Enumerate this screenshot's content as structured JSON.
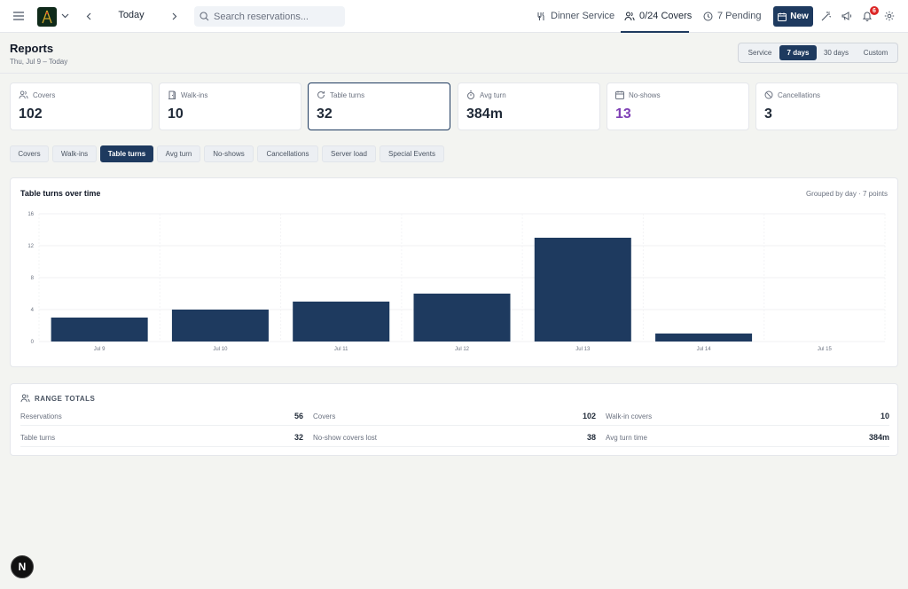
{
  "topbar": {
    "date_label": "Today",
    "search_placeholder": "Search reservations...",
    "service_label": "Dinner Service",
    "covers_label": "0/24 Covers",
    "pending_label": "7 Pending",
    "new_label": "New",
    "notification_count": "6"
  },
  "header": {
    "title": "Reports",
    "subtitle": "Thu, Jul 9 – Today",
    "ranges": [
      "Service",
      "7 days",
      "30 days",
      "Custom"
    ],
    "active_range": "7 days"
  },
  "cards": [
    {
      "label": "Covers",
      "value": "102",
      "icon": "users-icon"
    },
    {
      "label": "Walk-ins",
      "value": "10",
      "icon": "door-icon"
    },
    {
      "label": "Table turns",
      "value": "32",
      "icon": "refresh-icon"
    },
    {
      "label": "Avg turn",
      "value": "384m",
      "icon": "timer-icon"
    },
    {
      "label": "No-shows",
      "value": "13",
      "icon": "calendar-x-icon",
      "color": "#7e3fb5"
    },
    {
      "label": "Cancellations",
      "value": "3",
      "icon": "ban-icon"
    }
  ],
  "metric_tabs": [
    "Covers",
    "Walk-ins",
    "Table turns",
    "Avg turn",
    "No-shows",
    "Cancellations",
    "Server load",
    "Special Events"
  ],
  "active_metric": "Table turns",
  "chart": {
    "title": "Table turns over time",
    "note": "Grouped by day · 7 points"
  },
  "chart_data": {
    "type": "bar",
    "categories": [
      "Jul 9",
      "Jul 10",
      "Jul 11",
      "Jul 12",
      "Jul 13",
      "Jul 14",
      "Jul 15"
    ],
    "values": [
      3,
      4,
      5,
      6,
      13,
      1,
      0
    ],
    "yticks": [
      0,
      4,
      8,
      12,
      16
    ],
    "ylim": [
      0,
      16
    ],
    "grid": true,
    "bar_color": "#1e3a5f"
  },
  "totals": {
    "title": "RANGE TOTALS",
    "rows": [
      [
        {
          "label": "Reservations",
          "value": "56"
        },
        {
          "label": "Covers",
          "value": "102"
        },
        {
          "label": "Walk-in covers",
          "value": "10"
        }
      ],
      [
        {
          "label": "Table turns",
          "value": "32"
        },
        {
          "label": "No-show covers lost",
          "value": "38"
        },
        {
          "label": "Avg turn time",
          "value": "384m"
        }
      ]
    ]
  },
  "colors": {
    "accent": "#1e3a5f",
    "purple": "#7e3fb5",
    "badge": "#dc2626"
  }
}
